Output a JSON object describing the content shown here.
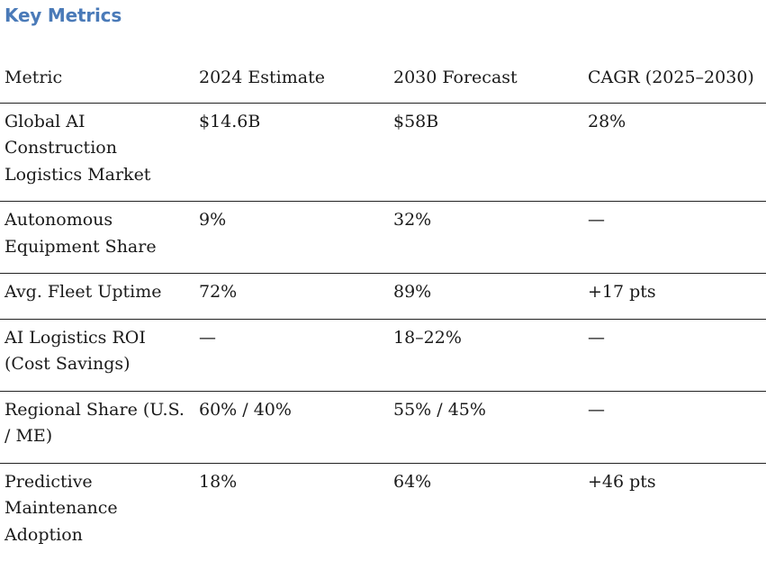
{
  "title": "Key Metrics",
  "table": {
    "headers": [
      "Metric",
      "2024 Estimate",
      "2030 Forecast",
      "CAGR (2025–2030)"
    ],
    "rows": [
      [
        "Global AI Construction Logistics Market",
        "$14.6B",
        "$58B",
        "28%"
      ],
      [
        "Autonomous Equipment Share",
        "9%",
        "32%",
        "—"
      ],
      [
        "Avg. Fleet Uptime",
        "72%",
        "89%",
        "+17 pts"
      ],
      [
        "AI Logistics ROI (Cost Savings)",
        "—",
        "18–22%",
        "—"
      ],
      [
        "Regional Share (U.S. / ME)",
        "60% / 40%",
        "55% / 45%",
        "—"
      ],
      [
        "Predictive Maintenance Adoption",
        "18%",
        "64%",
        "+46 pts"
      ]
    ]
  },
  "colors": {
    "heading": "#4a7ab8",
    "text": "#1a1a1a",
    "rule": "#222222"
  }
}
